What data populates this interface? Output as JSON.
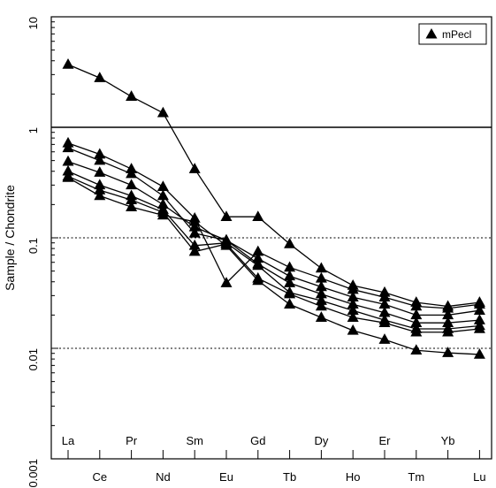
{
  "chart_data": {
    "type": "line",
    "title": "",
    "xlabel": "",
    "ylabel": "Sample / Chondrite",
    "yscale": "log",
    "ylim": [
      0.001,
      10
    ],
    "y_tick_labels": [
      "0.001",
      "0.01",
      "0.1",
      "1",
      "10"
    ],
    "y_tick_values": [
      0.001,
      0.01,
      0.1,
      1,
      10
    ],
    "categories": [
      "La",
      "Ce",
      "Pr",
      "Nd",
      "Sm",
      "Eu",
      "Gd",
      "Tb",
      "Dy",
      "Ho",
      "Er",
      "Tm",
      "Yb",
      "Lu"
    ],
    "category_label_rows": [
      "top",
      "bottom",
      "top",
      "bottom",
      "top",
      "bottom",
      "top",
      "bottom",
      "top",
      "bottom",
      "top",
      "bottom",
      "top",
      "bottom"
    ],
    "reference_lines": [
      {
        "value": 1,
        "style": "solid"
      },
      {
        "value": 0.1,
        "style": "dotted"
      },
      {
        "value": 0.01,
        "style": "dotted"
      }
    ],
    "legend": {
      "label": "mPecl",
      "marker": "triangle",
      "position": "top-right"
    },
    "marker": "triangle",
    "series_color": "#000000",
    "grid": false,
    "series": [
      {
        "values": [
          3.7,
          2.8,
          1.9,
          1.35,
          0.42,
          0.155,
          0.155,
          0.088,
          0.053,
          0.037,
          0.032,
          0.026,
          0.024,
          0.026
        ]
      },
      {
        "values": [
          0.72,
          0.57,
          0.42,
          0.29,
          0.15,
          0.039,
          0.075,
          0.054,
          0.043,
          0.034,
          0.029,
          0.024,
          0.023,
          0.025
        ]
      },
      {
        "values": [
          0.65,
          0.5,
          0.38,
          0.24,
          0.11,
          0.095,
          0.065,
          0.045,
          0.036,
          0.029,
          0.025,
          0.02,
          0.02,
          0.022
        ]
      },
      {
        "values": [
          0.49,
          0.39,
          0.3,
          0.2,
          0.125,
          0.095,
          0.058,
          0.039,
          0.031,
          0.025,
          0.021,
          0.017,
          0.017,
          0.018
        ]
      },
      {
        "values": [
          0.4,
          0.3,
          0.24,
          0.18,
          0.085,
          0.09,
          0.056,
          0.032,
          0.027,
          0.022,
          0.018,
          0.015,
          0.015,
          0.016
        ]
      },
      {
        "values": [
          0.36,
          0.27,
          0.22,
          0.17,
          0.075,
          0.088,
          0.043,
          0.031,
          0.024,
          0.019,
          0.017,
          0.014,
          0.014,
          0.015
        ]
      },
      {
        "values": [
          0.35,
          0.24,
          0.19,
          0.16,
          0.14,
          0.085,
          0.041,
          0.025,
          0.019,
          0.0145,
          0.012,
          0.0096,
          0.0091,
          0.0088
        ]
      }
    ]
  }
}
